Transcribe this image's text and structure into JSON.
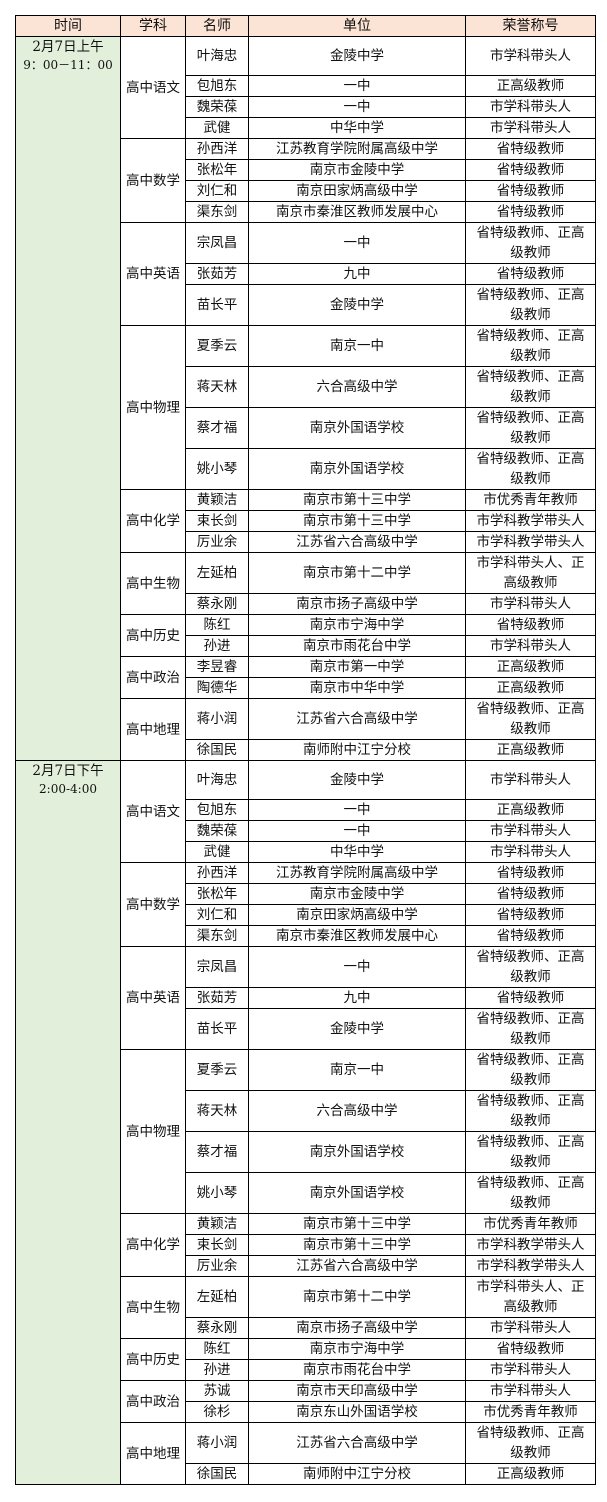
{
  "headers": [
    "时间",
    "学科",
    "名师",
    "单位",
    "荣誉称号"
  ],
  "colors": {
    "header_bg": "#fbe4d5",
    "time_bg": "#e2efda",
    "border": "#000000"
  },
  "sessions": [
    {
      "time_line1": "2月7日上午",
      "time_line2": "9：00－11：00",
      "subjects": [
        {
          "name": "高中语文",
          "teachers": [
            {
              "name": "叶海忠",
              "unit": "金陵中学",
              "honor": "市学科带头人"
            },
            {
              "name": "包旭东",
              "unit": "一中",
              "honor": "正高级教师"
            },
            {
              "name": "魏荣葆",
              "unit": "一中",
              "honor": "市学科带头人"
            },
            {
              "name": "武健",
              "unit": "中华中学",
              "honor": "市学科带头人"
            }
          ]
        },
        {
          "name": "高中数学",
          "teachers": [
            {
              "name": "孙西洋",
              "unit": "江苏教育学院附属高级中学",
              "honor": "省特级教师"
            },
            {
              "name": "张松年",
              "unit": "南京市金陵中学",
              "honor": "省特级教师"
            },
            {
              "name": "刘仁和",
              "unit": "南京田家炳高级中学",
              "honor": "省特级教师"
            },
            {
              "name": "渠东剑",
              "unit": "南京市秦淮区教师发展中心",
              "honor": "省特级教师"
            }
          ]
        },
        {
          "name": "高中英语",
          "teachers": [
            {
              "name": "宗凤昌",
              "unit": "一中",
              "honor": "省特级教师、正高级教师"
            },
            {
              "name": "张茹芳",
              "unit": "九中",
              "honor": "省特级教师"
            },
            {
              "name": "苗长平",
              "unit": "金陵中学",
              "honor": "省特级教师、正高级教师"
            }
          ]
        },
        {
          "name": "高中物理",
          "teachers": [
            {
              "name": "夏季云",
              "unit": "南京一中",
              "honor": "省特级教师、正高级教师"
            },
            {
              "name": "蒋天林",
              "unit": "六合高级中学",
              "honor": "省特级教师、正高级教师"
            },
            {
              "name": "蔡才福",
              "unit": "南京外国语学校",
              "honor": "省特级教师、正高级教师"
            },
            {
              "name": "姚小琴",
              "unit": "南京外国语学校",
              "honor": "省特级教师、正高级教师"
            }
          ]
        },
        {
          "name": "高中化学",
          "teachers": [
            {
              "name": "黄颖洁",
              "unit": "南京市第十三中学",
              "honor": "市优秀青年教师"
            },
            {
              "name": "束长剑",
              "unit": "南京市第十三中学",
              "honor": "市学科教学带头人"
            },
            {
              "name": "厉业余",
              "unit": "江苏省六合高级中学",
              "honor": "市学科教学带头人"
            }
          ]
        },
        {
          "name": "高中生物",
          "teachers": [
            {
              "name": "左延柏",
              "unit": "南京市第十二中学",
              "honor": "市学科带头人、正高级教师"
            },
            {
              "name": "蔡永刚",
              "unit": "南京市扬子高级中学",
              "honor": "市学科带头人"
            }
          ]
        },
        {
          "name": "高中历史",
          "teachers": [
            {
              "name": "陈红",
              "unit": "南京市宁海中学",
              "honor": "省特级教师"
            },
            {
              "name": "孙进",
              "unit": "南京市雨花台中学",
              "honor": "市学科带头人"
            }
          ]
        },
        {
          "name": "高中政治",
          "teachers": [
            {
              "name": "李昱睿",
              "unit": "南京市第一中学",
              "honor": "正高级教师"
            },
            {
              "name": "陶德华",
              "unit": "南京市中华中学",
              "honor": "正高级教师"
            }
          ]
        },
        {
          "name": "高中地理",
          "teachers": [
            {
              "name": "蒋小润",
              "unit": "江苏省六合高级中学",
              "honor": "省特级教师、正高级教师"
            },
            {
              "name": "徐国民",
              "unit": "南师附中江宁分校",
              "honor": "正高级教师"
            }
          ]
        }
      ]
    },
    {
      "time_line1": "2月7日下午",
      "time_line2": "2:00-4:00",
      "subjects": [
        {
          "name": "高中语文",
          "teachers": [
            {
              "name": "叶海忠",
              "unit": "金陵中学",
              "honor": "市学科带头人"
            },
            {
              "name": "包旭东",
              "unit": "一中",
              "honor": "正高级教师"
            },
            {
              "name": "魏荣葆",
              "unit": "一中",
              "honor": "市学科带头人"
            },
            {
              "name": "武健",
              "unit": "中华中学",
              "honor": "市学科带头人"
            }
          ]
        },
        {
          "name": "高中数学",
          "teachers": [
            {
              "name": "孙西洋",
              "unit": "江苏教育学院附属高级中学",
              "honor": "省特级教师"
            },
            {
              "name": "张松年",
              "unit": "南京市金陵中学",
              "honor": "省特级教师"
            },
            {
              "name": "刘仁和",
              "unit": "南京田家炳高级中学",
              "honor": "省特级教师"
            },
            {
              "name": "渠东剑",
              "unit": "南京市秦淮区教师发展中心",
              "honor": "省特级教师"
            }
          ]
        },
        {
          "name": "高中英语",
          "teachers": [
            {
              "name": "宗凤昌",
              "unit": "一中",
              "honor": "省特级教师、正高级教师"
            },
            {
              "name": "张茹芳",
              "unit": "九中",
              "honor": "省特级教师"
            },
            {
              "name": "苗长平",
              "unit": "金陵中学",
              "honor": "省特级教师、正高级教师"
            }
          ]
        },
        {
          "name": "高中物理",
          "teachers": [
            {
              "name": "夏季云",
              "unit": "南京一中",
              "honor": "省特级教师、正高级教师"
            },
            {
              "name": "蒋天林",
              "unit": "六合高级中学",
              "honor": "省特级教师、正高级教师"
            },
            {
              "name": "蔡才福",
              "unit": "南京外国语学校",
              "honor": "省特级教师、正高级教师"
            },
            {
              "name": "姚小琴",
              "unit": "南京外国语学校",
              "honor": "省特级教师、正高级教师"
            }
          ]
        },
        {
          "name": "高中化学",
          "teachers": [
            {
              "name": "黄颖洁",
              "unit": "南京市第十三中学",
              "honor": "市优秀青年教师"
            },
            {
              "name": "束长剑",
              "unit": "南京市第十三中学",
              "honor": "市学科教学带头人"
            },
            {
              "name": "厉业余",
              "unit": "江苏省六合高级中学",
              "honor": "市学科教学带头人"
            }
          ]
        },
        {
          "name": "高中生物",
          "teachers": [
            {
              "name": "左延柏",
              "unit": "南京市第十二中学",
              "honor": "市学科带头人、正高级教师"
            },
            {
              "name": "蔡永刚",
              "unit": "南京市扬子高级中学",
              "honor": "市学科带头人"
            }
          ]
        },
        {
          "name": "高中历史",
          "teachers": [
            {
              "name": "陈红",
              "unit": "南京市宁海中学",
              "honor": "省特级教师"
            },
            {
              "name": "孙进",
              "unit": "南京市雨花台中学",
              "honor": "市学科带头人"
            }
          ]
        },
        {
          "name": "高中政治",
          "teachers": [
            {
              "name": "苏诚",
              "unit": "南京市天印高级中学",
              "honor": "市学科带头人"
            },
            {
              "name": "徐杉",
              "unit": "南京东山外国语学校",
              "honor": "市优秀青年教师"
            }
          ]
        },
        {
          "name": "高中地理",
          "teachers": [
            {
              "name": "蒋小润",
              "unit": "江苏省六合高级中学",
              "honor": "省特级教师、正高级教师"
            },
            {
              "name": "徐国民",
              "unit": "南师附中江宁分校",
              "honor": "正高级教师"
            }
          ]
        }
      ]
    }
  ]
}
